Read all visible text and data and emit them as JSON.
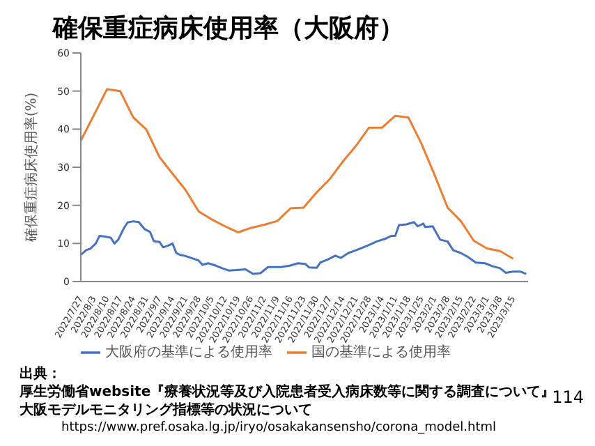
{
  "chart_data": {
    "type": "line",
    "title": "確保重症病床使用率（大阪府）",
    "ylabel": "確保重症病床使用率(%)",
    "xlim": [
      "2022-07-27",
      "2023-03-23"
    ],
    "xticks": [
      {
        "value": "2022-07-27",
        "label": "2022/7/27"
      },
      {
        "value": "2022-08-03",
        "label": "2022/8/3"
      },
      {
        "value": "2022-08-10",
        "label": "2022/8/10"
      },
      {
        "value": "2022-08-17",
        "label": "2022/8/17"
      },
      {
        "value": "2022-08-24",
        "label": "2022/8/24"
      },
      {
        "value": "2022-08-31",
        "label": "2022/8/31"
      },
      {
        "value": "2022-09-07",
        "label": "2022/9/7"
      },
      {
        "value": "2022-09-14",
        "label": "2022/9/14"
      },
      {
        "value": "2022-09-21",
        "label": "2022/9/21"
      },
      {
        "value": "2022-09-28",
        "label": "2022/9/28"
      },
      {
        "value": "2022-10-05",
        "label": "2022/10/5"
      },
      {
        "value": "2022-10-12",
        "label": "2022/10/12"
      },
      {
        "value": "2022-10-19",
        "label": "2022/10/19"
      },
      {
        "value": "2022-10-26",
        "label": "2022/10/26"
      },
      {
        "value": "2022-11-02",
        "label": "2022/11/2"
      },
      {
        "value": "2022-11-09",
        "label": "2022/11/9"
      },
      {
        "value": "2022-11-16",
        "label": "2022/11/16"
      },
      {
        "value": "2022-11-23",
        "label": "2022/11/23"
      },
      {
        "value": "2022-11-30",
        "label": "2022/11/30"
      },
      {
        "value": "2022-12-07",
        "label": "2022/12/7"
      },
      {
        "value": "2022-12-14",
        "label": "2022/12/14"
      },
      {
        "value": "2022-12-21",
        "label": "2022/12/21"
      },
      {
        "value": "2022-12-28",
        "label": "2022/12/28"
      },
      {
        "value": "2023-01-04",
        "label": "2023/1/4"
      },
      {
        "value": "2023-01-11",
        "label": "2023/1/11"
      },
      {
        "value": "2023-01-18",
        "label": "2023/1/18"
      },
      {
        "value": "2023-01-25",
        "label": "2023/1/25"
      },
      {
        "value": "2023-02-01",
        "label": "2023/2/1"
      },
      {
        "value": "2023-02-08",
        "label": "2023/2/8"
      },
      {
        "value": "2023-02-15",
        "label": "2023/2/15"
      },
      {
        "value": "2023-02-22",
        "label": "2023/2/22"
      },
      {
        "value": "2023-03-01",
        "label": "2023/3/1"
      },
      {
        "value": "2023-03-08",
        "label": "2023/3/8"
      },
      {
        "value": "2023-03-15",
        "label": "2023/3/15"
      }
    ],
    "ylim": [
      0,
      60
    ],
    "yticks": [
      0,
      10,
      20,
      30,
      40,
      50,
      60
    ],
    "grid": false,
    "legend": "bottom",
    "marker": "none",
    "series": [
      {
        "name": "大阪府の基準による使用率",
        "color": "#4472c4",
        "x": [
          "2022-07-27",
          "2022-07-30",
          "2022-08-01",
          "2022-08-04",
          "2022-08-06",
          "2022-08-09",
          "2022-08-12",
          "2022-08-14",
          "2022-08-16",
          "2022-08-19",
          "2022-08-21",
          "2022-08-24",
          "2022-08-27",
          "2022-08-30",
          "2022-09-02",
          "2022-09-04",
          "2022-09-07",
          "2022-09-09",
          "2022-09-12",
          "2022-09-14",
          "2022-09-16",
          "2022-09-18",
          "2022-09-21",
          "2022-09-25",
          "2022-09-28",
          "2022-09-30",
          "2022-10-03",
          "2022-10-07",
          "2022-10-10",
          "2022-10-14",
          "2022-10-18",
          "2022-10-23",
          "2022-10-27",
          "2022-10-31",
          "2022-11-04",
          "2022-11-11",
          "2022-11-16",
          "2022-11-20",
          "2022-11-24",
          "2022-11-26",
          "2022-11-30",
          "2022-12-02",
          "2022-12-06",
          "2022-12-10",
          "2022-12-13",
          "2022-12-17",
          "2022-12-21",
          "2022-12-25",
          "2022-12-29",
          "2023-01-01",
          "2023-01-06",
          "2023-01-09",
          "2023-01-11",
          "2023-01-13",
          "2023-01-17",
          "2023-01-21",
          "2023-01-23",
          "2023-01-26",
          "2023-01-27",
          "2023-01-31",
          "2023-02-04",
          "2023-02-08",
          "2023-02-11",
          "2023-02-15",
          "2023-02-19",
          "2023-02-23",
          "2023-02-28",
          "2023-03-04",
          "2023-03-08",
          "2023-03-11",
          "2023-03-15",
          "2023-03-19",
          "2023-03-22"
        ],
        "values": [
          7.0,
          8.3,
          8.6,
          10.0,
          12.0,
          11.8,
          11.5,
          10.0,
          11.0,
          14.0,
          15.5,
          15.8,
          15.6,
          13.8,
          13.0,
          10.6,
          10.4,
          9.0,
          9.5,
          10.0,
          7.5,
          7.0,
          6.7,
          6.0,
          5.5,
          4.4,
          4.8,
          4.2,
          3.6,
          2.9,
          3.0,
          3.2,
          2.0,
          2.2,
          3.8,
          3.8,
          4.2,
          4.8,
          4.6,
          3.7,
          3.6,
          5.0,
          5.8,
          6.8,
          6.2,
          7.5,
          8.2,
          9.0,
          9.8,
          10.5,
          11.3,
          12.0,
          12.0,
          14.8,
          15.0,
          15.6,
          14.5,
          15.2,
          14.3,
          14.5,
          11.0,
          10.5,
          8.2,
          7.5,
          6.4,
          5.0,
          4.8,
          4.0,
          3.5,
          2.3,
          2.6,
          2.6,
          2.0
        ]
      },
      {
        "name": "国の基準による使用率",
        "color": "#ed7d31",
        "x": [
          "2022-07-27",
          "2022-08-03",
          "2022-08-10",
          "2022-08-17",
          "2022-08-24",
          "2022-08-31",
          "2022-09-07",
          "2022-09-14",
          "2022-09-21",
          "2022-09-28",
          "2022-10-05",
          "2022-10-12",
          "2022-10-19",
          "2022-10-26",
          "2022-11-02",
          "2022-11-09",
          "2022-11-16",
          "2022-11-23",
          "2022-11-30",
          "2022-12-07",
          "2022-12-14",
          "2022-12-21",
          "2022-12-28",
          "2023-01-04",
          "2023-01-11",
          "2023-01-18",
          "2023-01-25",
          "2023-02-01",
          "2023-02-08",
          "2023-02-15",
          "2023-02-22",
          "2023-03-01",
          "2023-03-08",
          "2023-03-15"
        ],
        "values": [
          37.0,
          43.7,
          50.5,
          50.0,
          43.1,
          39.9,
          32.7,
          28.3,
          24.0,
          18.4,
          16.3,
          14.5,
          12.9,
          14.1,
          14.9,
          15.9,
          19.2,
          19.4,
          23.4,
          26.9,
          31.5,
          35.6,
          40.4,
          40.4,
          43.5,
          43.1,
          36.2,
          28.0,
          19.4,
          15.9,
          10.7,
          8.7,
          8.0,
          6.0
        ]
      }
    ],
    "annotations": [
      "出典：",
      "厚生労働省website『療養状況等及び入院患者受入病床数等に関する調査について』",
      "大阪モデルモニタリング指標等の状況について",
      "https://www.pref.osaka.lg.jp/iryo/osakakansensho/corona_model.html",
      "114"
    ]
  }
}
